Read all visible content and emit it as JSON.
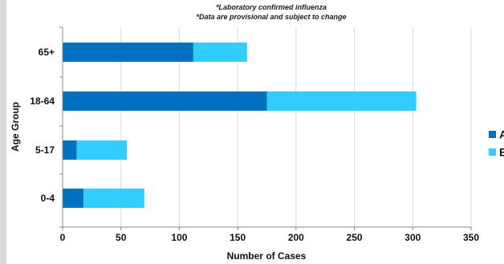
{
  "chart_data": {
    "type": "bar",
    "orientation": "horizontal",
    "stacked": true,
    "notes": [
      "*Laboratory confirmed influenza",
      "*Data are provisional and subject to change"
    ],
    "categories": [
      "65+",
      "18-64",
      "5-17",
      "0-4"
    ],
    "series": [
      {
        "name": "A",
        "values": [
          112,
          175,
          12,
          18
        ],
        "color": "#0070c0"
      },
      {
        "name": "B",
        "values": [
          46,
          128,
          43,
          52
        ],
        "color": "#33ccff"
      }
    ],
    "xlabel": "Number of Cases",
    "ylabel": "Age Group",
    "xlim": [
      0,
      350
    ],
    "xticks": [
      0,
      50,
      100,
      150,
      200,
      250,
      300,
      350
    ],
    "grid": "vertical",
    "legend": "right"
  }
}
